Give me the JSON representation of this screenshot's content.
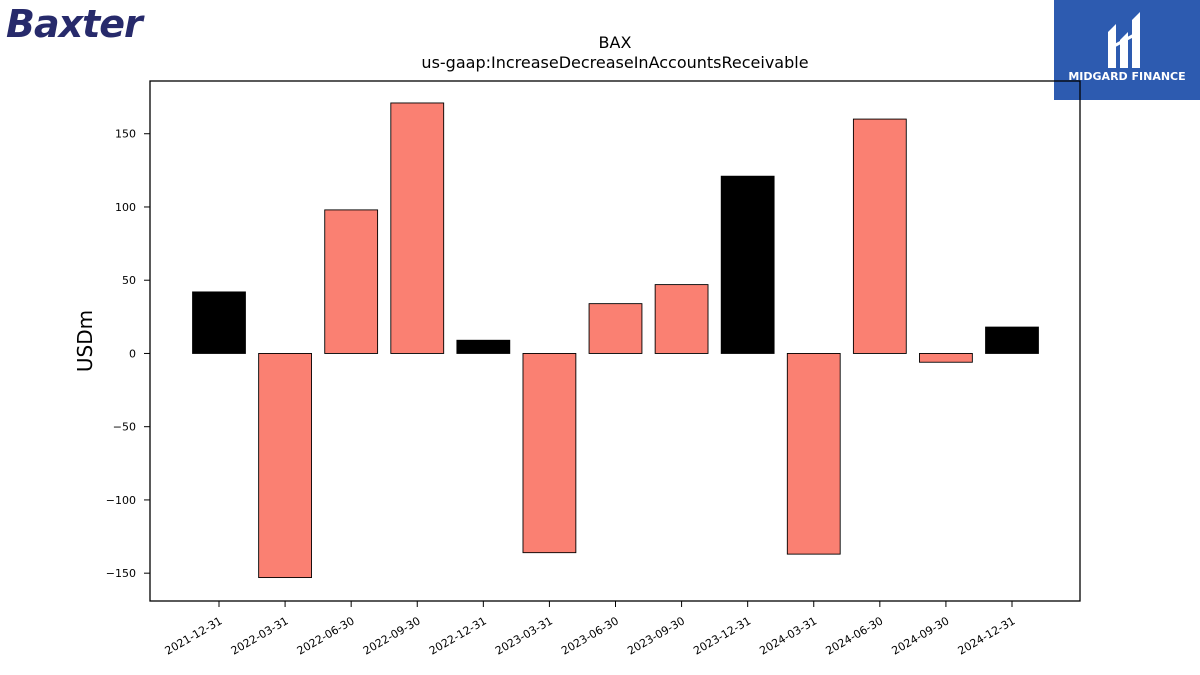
{
  "branding": {
    "left_logo": "Baxter",
    "right_logo": "MIDGARD FINANCE"
  },
  "colors": {
    "positive_annual": "#000000",
    "quarterly": "#fa8072",
    "axis": "#000000",
    "right_logo_bg": "#2d5bb0",
    "left_logo": "#272a6b"
  },
  "chart_data": {
    "type": "bar",
    "title": "BAX",
    "subtitle": "us-gaap:IncreaseDecreaseInAccountsReceivable",
    "xlabel": "",
    "ylabel": "USDm",
    "ylim": [
      -169,
      186
    ],
    "yticks": [
      150,
      100,
      50,
      0,
      -50,
      -100,
      -150
    ],
    "ytick_labels": [
      "150",
      "100",
      "50",
      "0",
      "−50",
      "−100",
      "−150"
    ],
    "grid": false,
    "categories": [
      "2021-12-31",
      "2022-03-31",
      "2022-06-30",
      "2022-09-30",
      "2022-12-31",
      "2023-03-31",
      "2023-06-30",
      "2023-09-30",
      "2023-12-31",
      "2024-03-31",
      "2024-06-30",
      "2024-09-30",
      "2024-12-31"
    ],
    "values": [
      42,
      -153,
      98,
      171,
      9,
      -136,
      34,
      47,
      121,
      -137,
      160,
      -6,
      18
    ],
    "bar_colors": [
      "#000000",
      "#fa8072",
      "#fa8072",
      "#fa8072",
      "#000000",
      "#fa8072",
      "#fa8072",
      "#fa8072",
      "#000000",
      "#fa8072",
      "#fa8072",
      "#fa8072",
      "#000000"
    ]
  }
}
